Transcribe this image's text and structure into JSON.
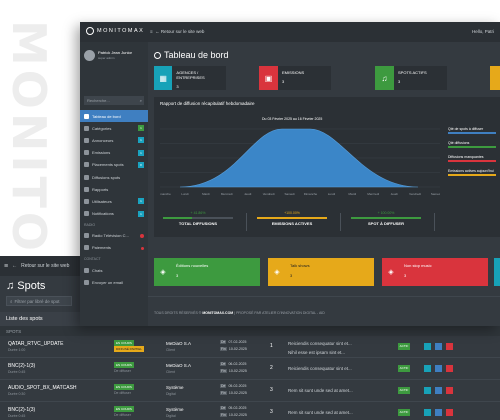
{
  "watermark": "MONITOMAX",
  "dashboard": {
    "brand": "MONITOMAX",
    "back_link": "Retour sur le site web",
    "hello": "Hello, Patri",
    "user": {
      "name": "Patrick Jean Junior",
      "role": "super admin"
    },
    "search_placeholder": "Recherche...",
    "menu": [
      {
        "label": "Tableau de bord",
        "active": true,
        "badge": ""
      },
      {
        "label": "Catégories",
        "badge": "1"
      },
      {
        "label": "Annonceurs",
        "badge": "1"
      },
      {
        "label": "Emissions",
        "badge": "1"
      },
      {
        "label": "Placements spots",
        "badge": "8"
      },
      {
        "label": "Diffusions spots",
        "badge": ""
      },
      {
        "label": "Rapports",
        "badge": ""
      },
      {
        "label": "Utilisateurs",
        "badge": "1"
      },
      {
        "label": "Notifications",
        "badge": "1"
      }
    ],
    "section_label": "RADIO",
    "radio_item": "Radio Télévision C...",
    "radio_item2": "Paiements",
    "contact_label": "CONTACT",
    "contact_items": [
      "Chats",
      "Envoyer un email"
    ],
    "page_title": "Tableau de bord",
    "tiles": [
      {
        "label": "AGENCES / ENTREPRISES",
        "value": "3",
        "color": "#17a2b8"
      },
      {
        "label": "EMISSIONS",
        "value": "3",
        "color": "#d9343d"
      },
      {
        "label": "SPOTS ACTIFS",
        "value": "3",
        "color": "#3d9a3f"
      },
      {
        "label": "",
        "value": "",
        "color": "#e6a91a"
      }
    ],
    "report": {
      "title": "Rapport de diffusion récapitulatif hebdomadaire",
      "subtitle": "Du 03 Février 2025  au  16 Février 2025",
      "legend": [
        {
          "label": "Qté de spots à diffuser",
          "color": "#3f7fc1"
        },
        {
          "label": "Qté diffusions",
          "color": "#3d9a3f"
        },
        {
          "label": "Diffusions manquantes",
          "color": "#d9343d"
        },
        {
          "label": "Emissions actives aujourd'hui",
          "color": "#e6a91a"
        }
      ],
      "x_labels": [
        "Dimanche",
        "Lundi",
        "Mardi",
        "Mercredi",
        "Jeudi",
        "Vendredi",
        "Samedi",
        "Dimanche",
        "Lundi",
        "Mardi",
        "Mercredi",
        "Jeudi",
        "Vendredi",
        "Samedi"
      ],
      "stats": [
        {
          "pct": "+ 41.86%",
          "label": "TOTAL DIFFUSIONS",
          "color": "#3d9a3f"
        },
        {
          "pct": "+100.00%",
          "label": "EMISSIONS ACTIVES",
          "color": "#e6a91a"
        },
        {
          "pct": "+ 100.00%",
          "label": "SPOT À DIFFUSER",
          "color": "#3d9a3f"
        }
      ]
    },
    "categories": [
      {
        "label": "Éditions nouvelles",
        "value": "3",
        "color": "#3d9a3f",
        "text": "#ffffff"
      },
      {
        "label": "Talk shows",
        "value": "3",
        "color": "#e6a91a",
        "text": "#222222"
      },
      {
        "label": "Non stop music",
        "value": "3",
        "color": "#d9343d",
        "text": "#ffffff"
      }
    ],
    "footer_pre": "TOUS DROITS RÉSERVÉS ®",
    "footer_brand": "MONITOMAX.COM",
    "footer_post": " | PROPOSÉ PAR ATELIER D'INNOVATION DIGITAL - AID"
  },
  "spots": {
    "back_link": "Retour sur le site web",
    "title": "Spots",
    "search_placeholder": "Filtrer par libré de spot",
    "list_header": "Liste des spots",
    "sub_header": "SPOTS",
    "rows": [
      {
        "name": "QATAR_RTVC_UPDATE",
        "duration": "Durée 1:00",
        "status": "EN COURS",
        "status2": "DIFFUSÉ PARTIEL",
        "client": "MeDiaO S.A",
        "client2": "Client",
        "date1": "07-02-2025",
        "date2": "10-02-2025",
        "num": "1",
        "msg": "Reiciendis consequatur sint et...",
        "msg2": "Nihil esse est ipsam sint et...",
        "state": "ACTIF"
      },
      {
        "name": "BNC(2)-1(3)",
        "duration": "Durée 0:45",
        "status": "EN COURS",
        "status2": "De diffuser",
        "client": "MeDiaO S.A",
        "client2": "Client",
        "date1": "06-02-2025",
        "date2": "10-02-2025",
        "num": "2",
        "msg": "Reiciendis consequatur sint et...",
        "msg2": "",
        "state": "ACTIF"
      },
      {
        "name": "AUDIO_SPOT_BX_MATCASH",
        "duration": "Durée 0:30",
        "status": "EN COURS",
        "status2": "De diffuser",
        "client": "Système",
        "client2": "Digital",
        "date1": "05-02-2025",
        "date2": "10-02-2025",
        "num": "3",
        "msg": "Rem sit sunt unde sed at amet...",
        "msg2": "",
        "state": "ACTIF"
      },
      {
        "name": "BNC(2)-1(3)",
        "duration": "Durée 0:45",
        "status": "EN COURS",
        "status2": "De diffuser",
        "client": "Système",
        "client2": "Digital",
        "date1": "05-02-2025",
        "date2": "10-02-2025",
        "num": "3",
        "msg": "Rem sit sunt unde sed at amet...",
        "msg2": "",
        "state": "ACTIF"
      }
    ]
  }
}
